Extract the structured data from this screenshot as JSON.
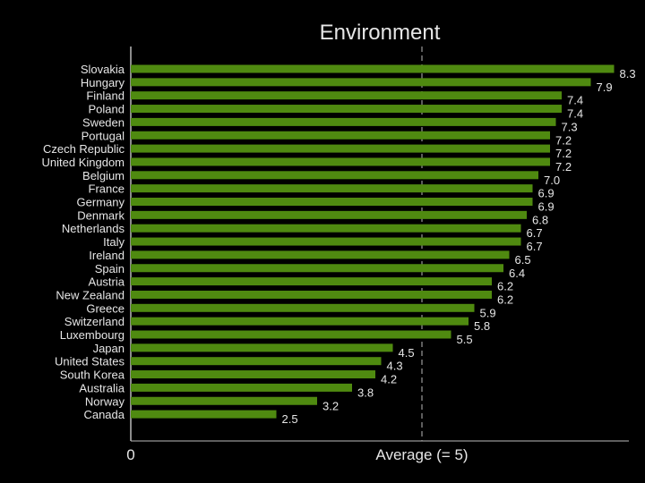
{
  "chart_data": {
    "type": "bar",
    "orientation": "horizontal",
    "title": "Environment",
    "categories": [
      "Slovakia",
      "Hungary",
      "Finland",
      "Poland",
      "Sweden",
      "Portugal",
      "Czech Republic",
      "United Kingdom",
      "Belgium",
      "France",
      "Germany",
      "Denmark",
      "Netherlands",
      "Italy",
      "Ireland",
      "Spain",
      "Austria",
      "New Zealand",
      "Greece",
      "Switzerland",
      "Luxembourg",
      "Japan",
      "United States",
      "South Korea",
      "Australia",
      "Norway",
      "Canada"
    ],
    "values": [
      8.3,
      7.9,
      7.4,
      7.4,
      7.3,
      7.2,
      7.2,
      7.2,
      7.0,
      6.9,
      6.9,
      6.8,
      6.7,
      6.7,
      6.5,
      6.4,
      6.2,
      6.2,
      5.9,
      5.8,
      5.5,
      4.5,
      4.3,
      4.2,
      3.8,
      3.2,
      2.5
    ],
    "value_labels": [
      "8.3",
      "7.9",
      "7.4",
      "7.4",
      "7.3",
      "7.2",
      "7.2",
      "7.2",
      "7.0",
      "6.9",
      "6.9",
      "6.8",
      "6.7",
      "6.7",
      "6.5",
      "6.4",
      "6.2",
      "6.2",
      "5.9",
      "5.8",
      "5.5",
      "4.5",
      "4.3",
      "4.2",
      "3.8",
      "3.2",
      "2.5"
    ],
    "x_tick_labels": {
      "zero": "0",
      "average": "Average (= 5)"
    },
    "average_line_value": 5,
    "xlim": [
      0,
      8.5
    ],
    "bar_color": "#4f8a10",
    "reference_line_color": "#9a9a9a",
    "background": "#000000",
    "grid": false,
    "legend": "none"
  }
}
